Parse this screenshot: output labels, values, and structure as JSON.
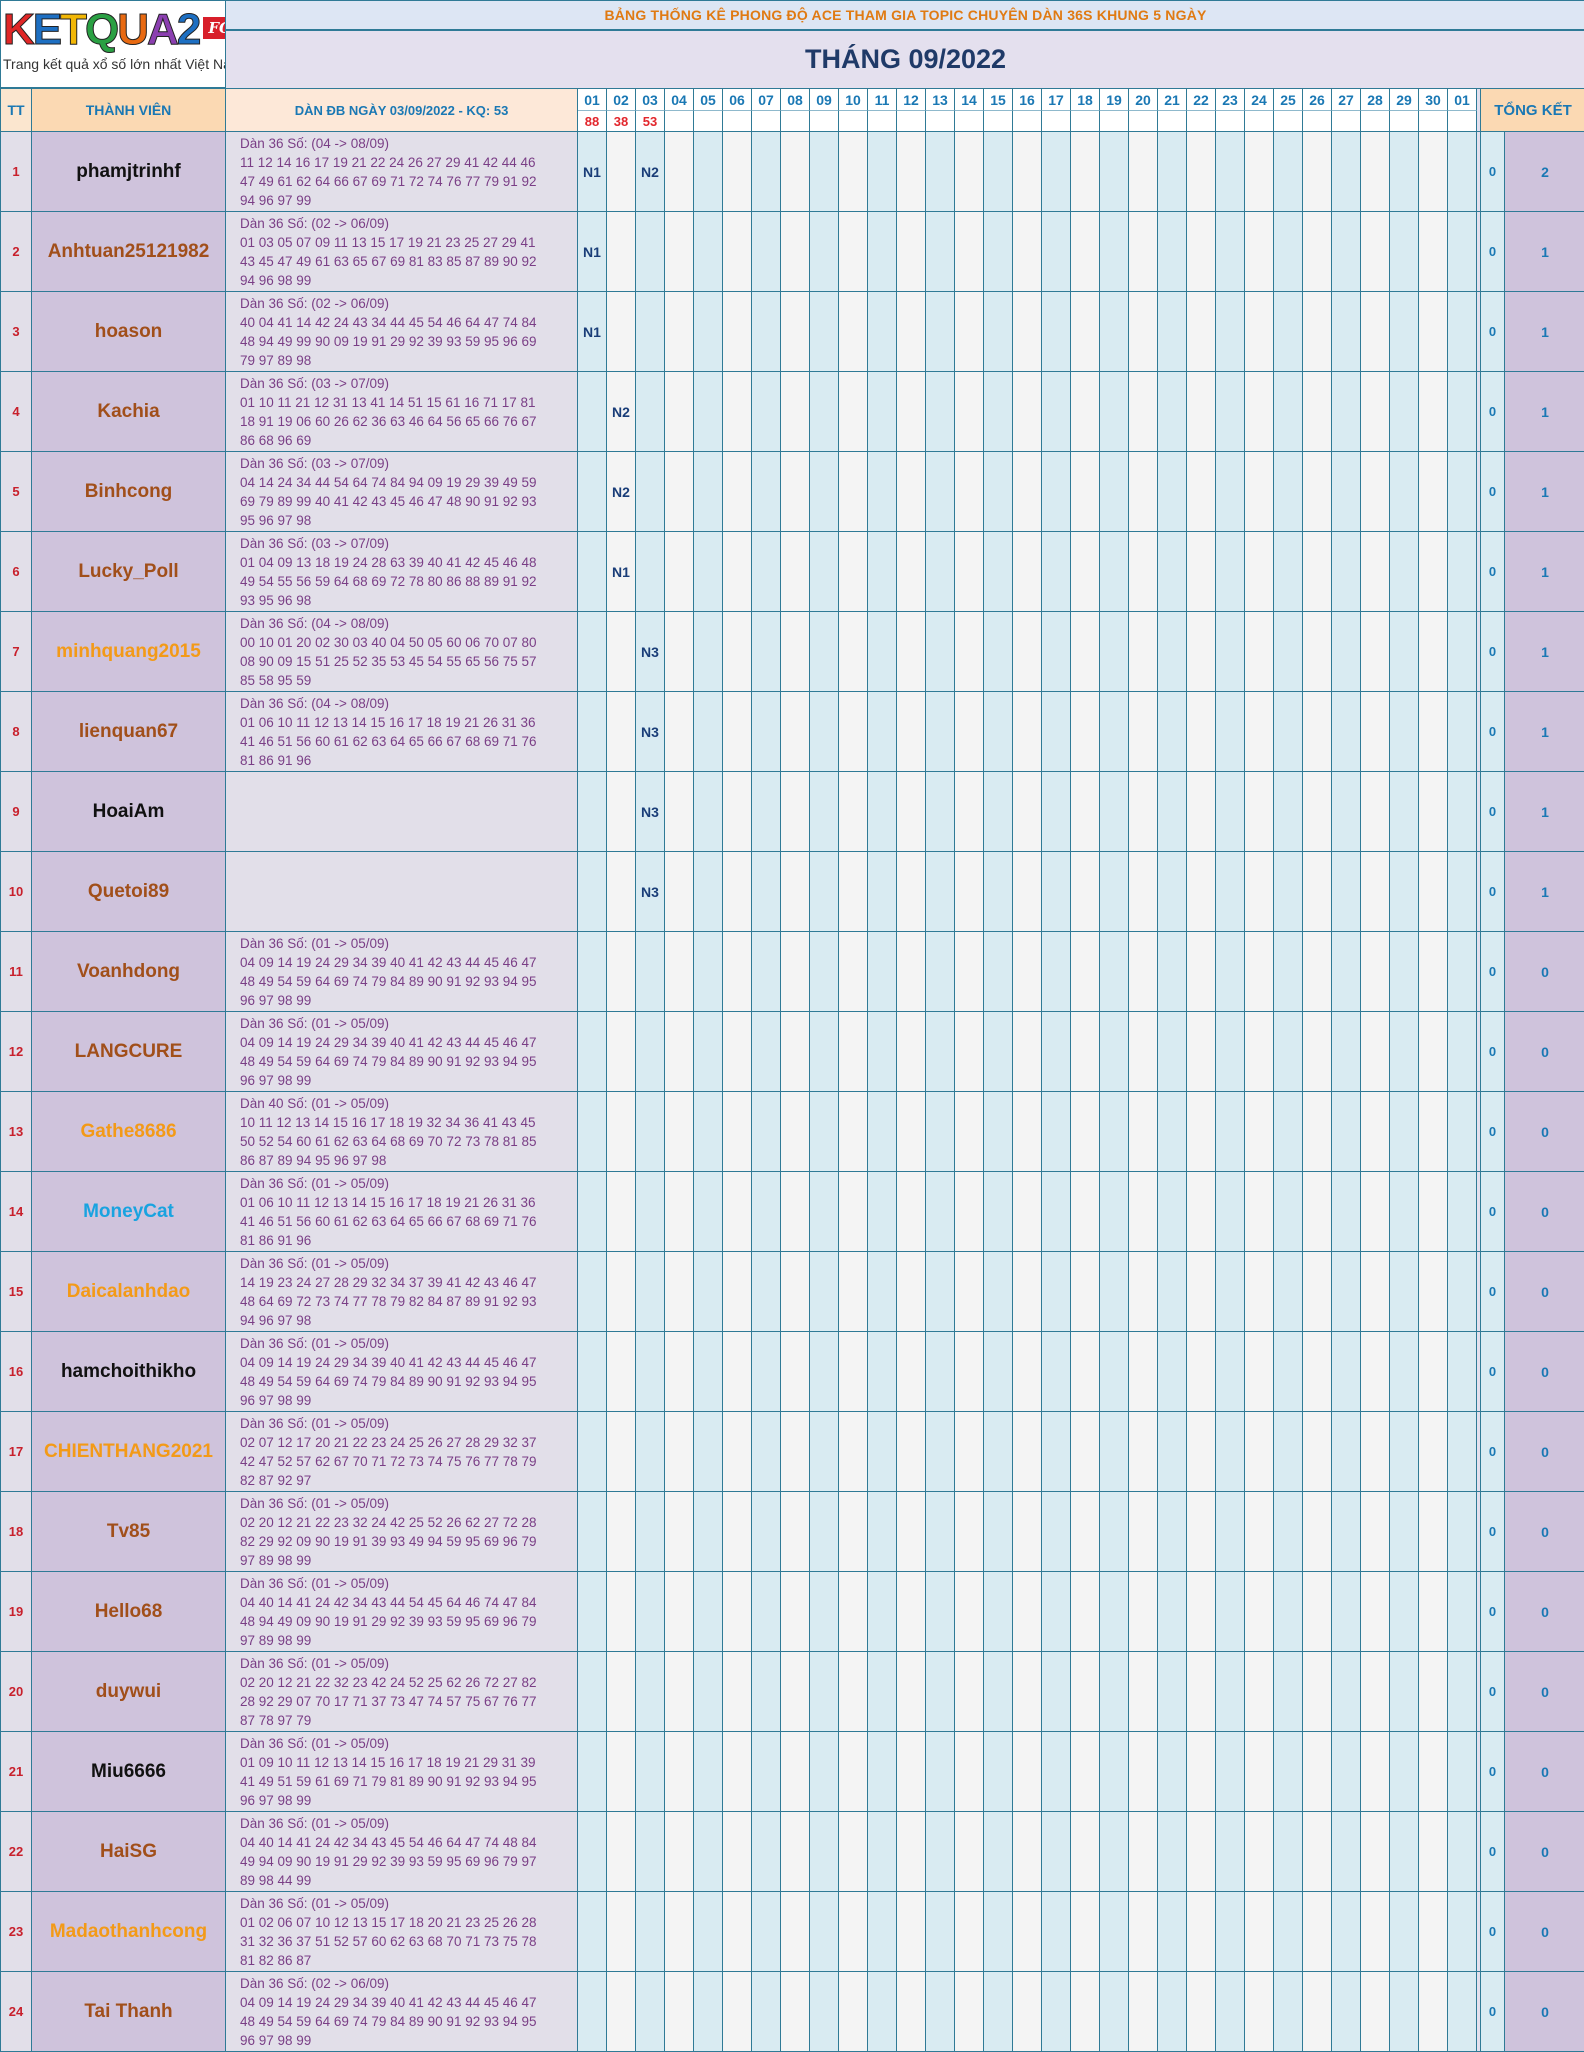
{
  "logo": {
    "brand": "KETQUA2",
    "badge": "FORUM",
    "tagline": "Trang kết quả xổ số lớn nhất Việt Nam"
  },
  "banner": "BẢNG THỐNG KÊ PHONG ĐỘ ACE THAM GIA TOPIC CHUYÊN DÀN 36S KHUNG 5 NGÀY",
  "month_title": "THÁNG 09/2022",
  "headers": {
    "tt": "TT",
    "member": "THÀNH VIÊN",
    "dan": "DÀN ĐB NGÀY 03/09/2022 - KQ: 53",
    "total": "TỔNG KẾT"
  },
  "days": [
    "01",
    "02",
    "03",
    "04",
    "05",
    "06",
    "07",
    "08",
    "09",
    "10",
    "11",
    "12",
    "13",
    "14",
    "15",
    "16",
    "17",
    "18",
    "19",
    "20",
    "21",
    "22",
    "23",
    "24",
    "25",
    "26",
    "27",
    "28",
    "29",
    "30",
    "01"
  ],
  "results": [
    "88",
    "38",
    "53"
  ],
  "colors": {
    "orange": "#f39a17",
    "brown": "#a14f1a",
    "black": "#111111",
    "blue": "#19a3e0",
    "red_tt": "#c8202c",
    "border": "#2f7a96"
  },
  "rows": [
    {
      "tt": "1",
      "name": "phamjtrinhf",
      "color": "black",
      "dan": [
        "Dàn 36 Số: (04 -> 08/09)",
        "11 12 14 16 17 19 21 22 24 26 27 29 41 42 44 46",
        "47 49 61 62 64 66 67 69 71 72 74 76 77 79 91 92",
        "94 96 97 99"
      ],
      "marks": {
        "0": "N1",
        "2": "N2"
      },
      "a": "0",
      "b": "2"
    },
    {
      "tt": "2",
      "name": "Anhtuan25121982",
      "color": "brown",
      "dan": [
        "Dàn 36 Số: (02 -> 06/09)",
        "01 03 05 07 09 11 13 15 17 19 21 23 25 27 29 41",
        "43 45 47 49 61 63 65 67 69 81 83 85 87 89 90 92",
        "94 96 98 99"
      ],
      "marks": {
        "0": "N1"
      },
      "a": "0",
      "b": "1"
    },
    {
      "tt": "3",
      "name": "hoason",
      "color": "brown",
      "dan": [
        "Dàn 36 Số: (02 -> 06/09)",
        "40 04 41 14 42 24 43 34 44 45 54 46 64 47 74 84",
        "48 94 49 99 90 09 19 91 29 92 39 93 59 95 96 69",
        "79 97 89 98"
      ],
      "marks": {
        "0": "N1"
      },
      "a": "0",
      "b": "1"
    },
    {
      "tt": "4",
      "name": "Kachia",
      "color": "brown",
      "dan": [
        "Dàn 36 Số: (03 -> 07/09)",
        "01 10 11 21 12 31 13 41 14 51 15 61 16 71 17 81",
        "18 91 19 06 60 26 62 36 63 46 64 56 65 66 76 67",
        "86 68 96 69"
      ],
      "marks": {
        "1": "N2"
      },
      "a": "0",
      "b": "1"
    },
    {
      "tt": "5",
      "name": "Binhcong",
      "color": "brown",
      "dan": [
        "Dàn 36 Số: (03 -> 07/09)",
        "04 14 24 34 44 54 64 74 84 94 09 19 29 39 49 59",
        "69 79 89 99 40 41 42 43 45 46 47 48 90 91 92 93",
        "95 96 97 98"
      ],
      "marks": {
        "1": "N2"
      },
      "a": "0",
      "b": "1"
    },
    {
      "tt": "6",
      "name": "Lucky_Poll",
      "color": "brown",
      "dan": [
        "Dàn 36 Số: (03 -> 07/09)",
        "01 04 09 13 18 19 24 28 63 39 40 41 42 45 46 48",
        "49 54 55 56 59 64 68 69 72 78 80 86 88 89 91 92",
        "93 95 96 98"
      ],
      "marks": {
        "1": "N1"
      },
      "a": "0",
      "b": "1"
    },
    {
      "tt": "7",
      "name": "minhquang2015",
      "color": "orange",
      "dan": [
        "Dàn 36 Số: (04 -> 08/09)",
        "00 10 01 20 02 30 03 40 04 50 05 60 06 70 07 80",
        "08 90 09 15 51 25 52 35 53 45 54 55 65 56 75 57",
        "85 58 95 59"
      ],
      "marks": {
        "2": "N3"
      },
      "a": "0",
      "b": "1"
    },
    {
      "tt": "8",
      "name": "lienquan67",
      "color": "brown",
      "dan": [
        "Dàn 36 Số: (04 -> 08/09)",
        "01 06 10 11 12 13 14 15 16 17 18 19 21 26 31 36",
        "41 46 51 56 60 61 62 63 64 65 66 67 68 69 71 76",
        "81 86 91 96"
      ],
      "marks": {
        "2": "N3"
      },
      "a": "0",
      "b": "1"
    },
    {
      "tt": "9",
      "name": "HoaiAm",
      "color": "black",
      "dan": [],
      "marks": {
        "2": "N3"
      },
      "a": "0",
      "b": "1"
    },
    {
      "tt": "10",
      "name": "Quetoi89",
      "color": "brown",
      "dan": [],
      "marks": {
        "2": "N3"
      },
      "a": "0",
      "b": "1"
    },
    {
      "tt": "11",
      "name": "Voanhdong",
      "color": "brown",
      "dan": [
        "Dàn 36 Số: (01 -> 05/09)",
        "04 09 14 19 24 29 34 39 40 41 42 43 44 45 46 47",
        "48 49 54 59 64 69 74 79 84 89 90 91 92 93 94 95",
        "96 97 98 99"
      ],
      "marks": {},
      "a": "0",
      "b": "0"
    },
    {
      "tt": "12",
      "name": "LANGCURE",
      "color": "brown",
      "dan": [
        "Dàn 36 Số: (01 -> 05/09)",
        "04 09 14 19 24 29 34 39 40 41 42 43 44 45 46 47",
        "48 49 54 59 64 69 74 79 84 89 90 91 92 93 94 95",
        "96 97 98 99"
      ],
      "marks": {},
      "a": "0",
      "b": "0"
    },
    {
      "tt": "13",
      "name": "Gathe8686",
      "color": "orange",
      "dan": [
        "Dàn 40 Số: (01 -> 05/09)",
        "10 11 12 13 14 15 16 17 18 19 32 34 36 41 43 45",
        "50 52 54 60 61 62 63 64 68 69 70 72 73 78 81 85",
        "86 87 89 94 95 96 97 98"
      ],
      "marks": {},
      "a": "0",
      "b": "0"
    },
    {
      "tt": "14",
      "name": "MoneyCat",
      "color": "blue",
      "dan": [
        "Dàn 36 Số: (01 -> 05/09)",
        "01 06 10 11 12 13 14 15 16 17 18 19 21 26 31 36",
        "41 46 51 56 60 61 62 63 64 65 66 67 68 69 71 76",
        "81 86 91 96"
      ],
      "marks": {},
      "a": "0",
      "b": "0"
    },
    {
      "tt": "15",
      "name": "Daicalanhdao",
      "color": "orange",
      "dan": [
        "Dàn 36 Số: (01 -> 05/09)",
        "14 19 23 24 27 28 29 32 34 37 39 41 42 43 46 47",
        "48 64 69 72 73 74 77 78 79 82 84 87 89 91 92 93",
        "94 96 97 98"
      ],
      "marks": {},
      "a": "0",
      "b": "0"
    },
    {
      "tt": "16",
      "name": "hamchoithikho",
      "color": "black",
      "dan": [
        "Dàn 36 Số: (01 -> 05/09)",
        "04 09 14 19 24 29 34 39 40 41 42 43 44 45 46 47",
        "48 49 54 59 64 69 74 79 84 89 90 91 92 93 94 95",
        "96 97 98 99"
      ],
      "marks": {},
      "a": "0",
      "b": "0"
    },
    {
      "tt": "17",
      "name": "CHIENTHANG2021",
      "color": "orange",
      "dan": [
        "Dàn 36 Số: (01 -> 05/09)",
        "02 07 12 17 20 21 22 23 24 25 26 27 28 29 32 37",
        "42 47 52 57 62 67 70 71 72 73 74 75 76 77 78 79",
        "82 87 92 97"
      ],
      "marks": {},
      "a": "0",
      "b": "0"
    },
    {
      "tt": "18",
      "name": "Tv85",
      "color": "brown",
      "dan": [
        "Dàn 36 Số: (01 -> 05/09)",
        "02 20 12 21 22 23 32 24 42 25 52 26 62 27 72 28",
        "82 29 92 09 90 19 91 39 93 49 94 59 95 69 96 79",
        "97 89 98 99"
      ],
      "marks": {},
      "a": "0",
      "b": "0"
    },
    {
      "tt": "19",
      "name": "Hello68",
      "color": "brown",
      "dan": [
        "Dàn 36 Số: (01 -> 05/09)",
        "04 40 14 41 24 42 34 43 44 54 45 64 46 74 47 84",
        "48 94 49 09 90 19 91 29 92 39 93 59 95 69 96 79",
        "97 89 98 99"
      ],
      "marks": {},
      "a": "0",
      "b": "0"
    },
    {
      "tt": "20",
      "name": "duywui",
      "color": "brown",
      "dan": [
        "Dàn 36 Số: (01 -> 05/09)",
        "02 20 12 21 22 32 23 42 24 52 25 62 26 72 27 82",
        "28 92 29 07 70 17 71 37 73 47 74 57 75 67 76 77",
        "87 78 97 79"
      ],
      "marks": {},
      "a": "0",
      "b": "0"
    },
    {
      "tt": "21",
      "name": "Miu6666",
      "color": "black",
      "dan": [
        "Dàn 36 Số: (01 -> 05/09)",
        "01 09 10 11 12 13 14 15 16 17 18 19 21 29 31 39",
        "41 49 51 59 61 69 71 79 81 89 90 91 92 93 94 95",
        "96 97 98 99"
      ],
      "marks": {},
      "a": "0",
      "b": "0"
    },
    {
      "tt": "22",
      "name": "HaiSG",
      "color": "brown",
      "dan": [
        "Dàn 36 Số: (01 -> 05/09)",
        "04 40 14 41 24 42 34 43 45 54 46 64 47 74 48 84",
        "49 94 09 90 19 91 29 92 39 93 59 95 69 96 79 97",
        "89 98 44 99"
      ],
      "marks": {},
      "a": "0",
      "b": "0"
    },
    {
      "tt": "23",
      "name": "Madaothanhcong",
      "color": "orange",
      "dan": [
        "Dàn 36 Số: (01 -> 05/09)",
        "01 02 06 07 10 12 13 15 17 18 20 21 23 25 26 28",
        "31 32 36 37 51 52 57 60 62 63 68 70 71 73 75 78",
        "81 82 86 87"
      ],
      "marks": {},
      "a": "0",
      "b": "0"
    },
    {
      "tt": "24",
      "name": "Tai Thanh",
      "color": "brown",
      "dan": [
        "Dàn 36 Số: (02 -> 06/09)",
        "04 09 14 19 24 29 34 39 40 41 42 43 44 45 46 47",
        "48 49 54 59 64 69 74 79 84 89 90 91 92 93 94 95",
        "96 97 98 99"
      ],
      "marks": {},
      "a": "0",
      "b": "0"
    }
  ]
}
